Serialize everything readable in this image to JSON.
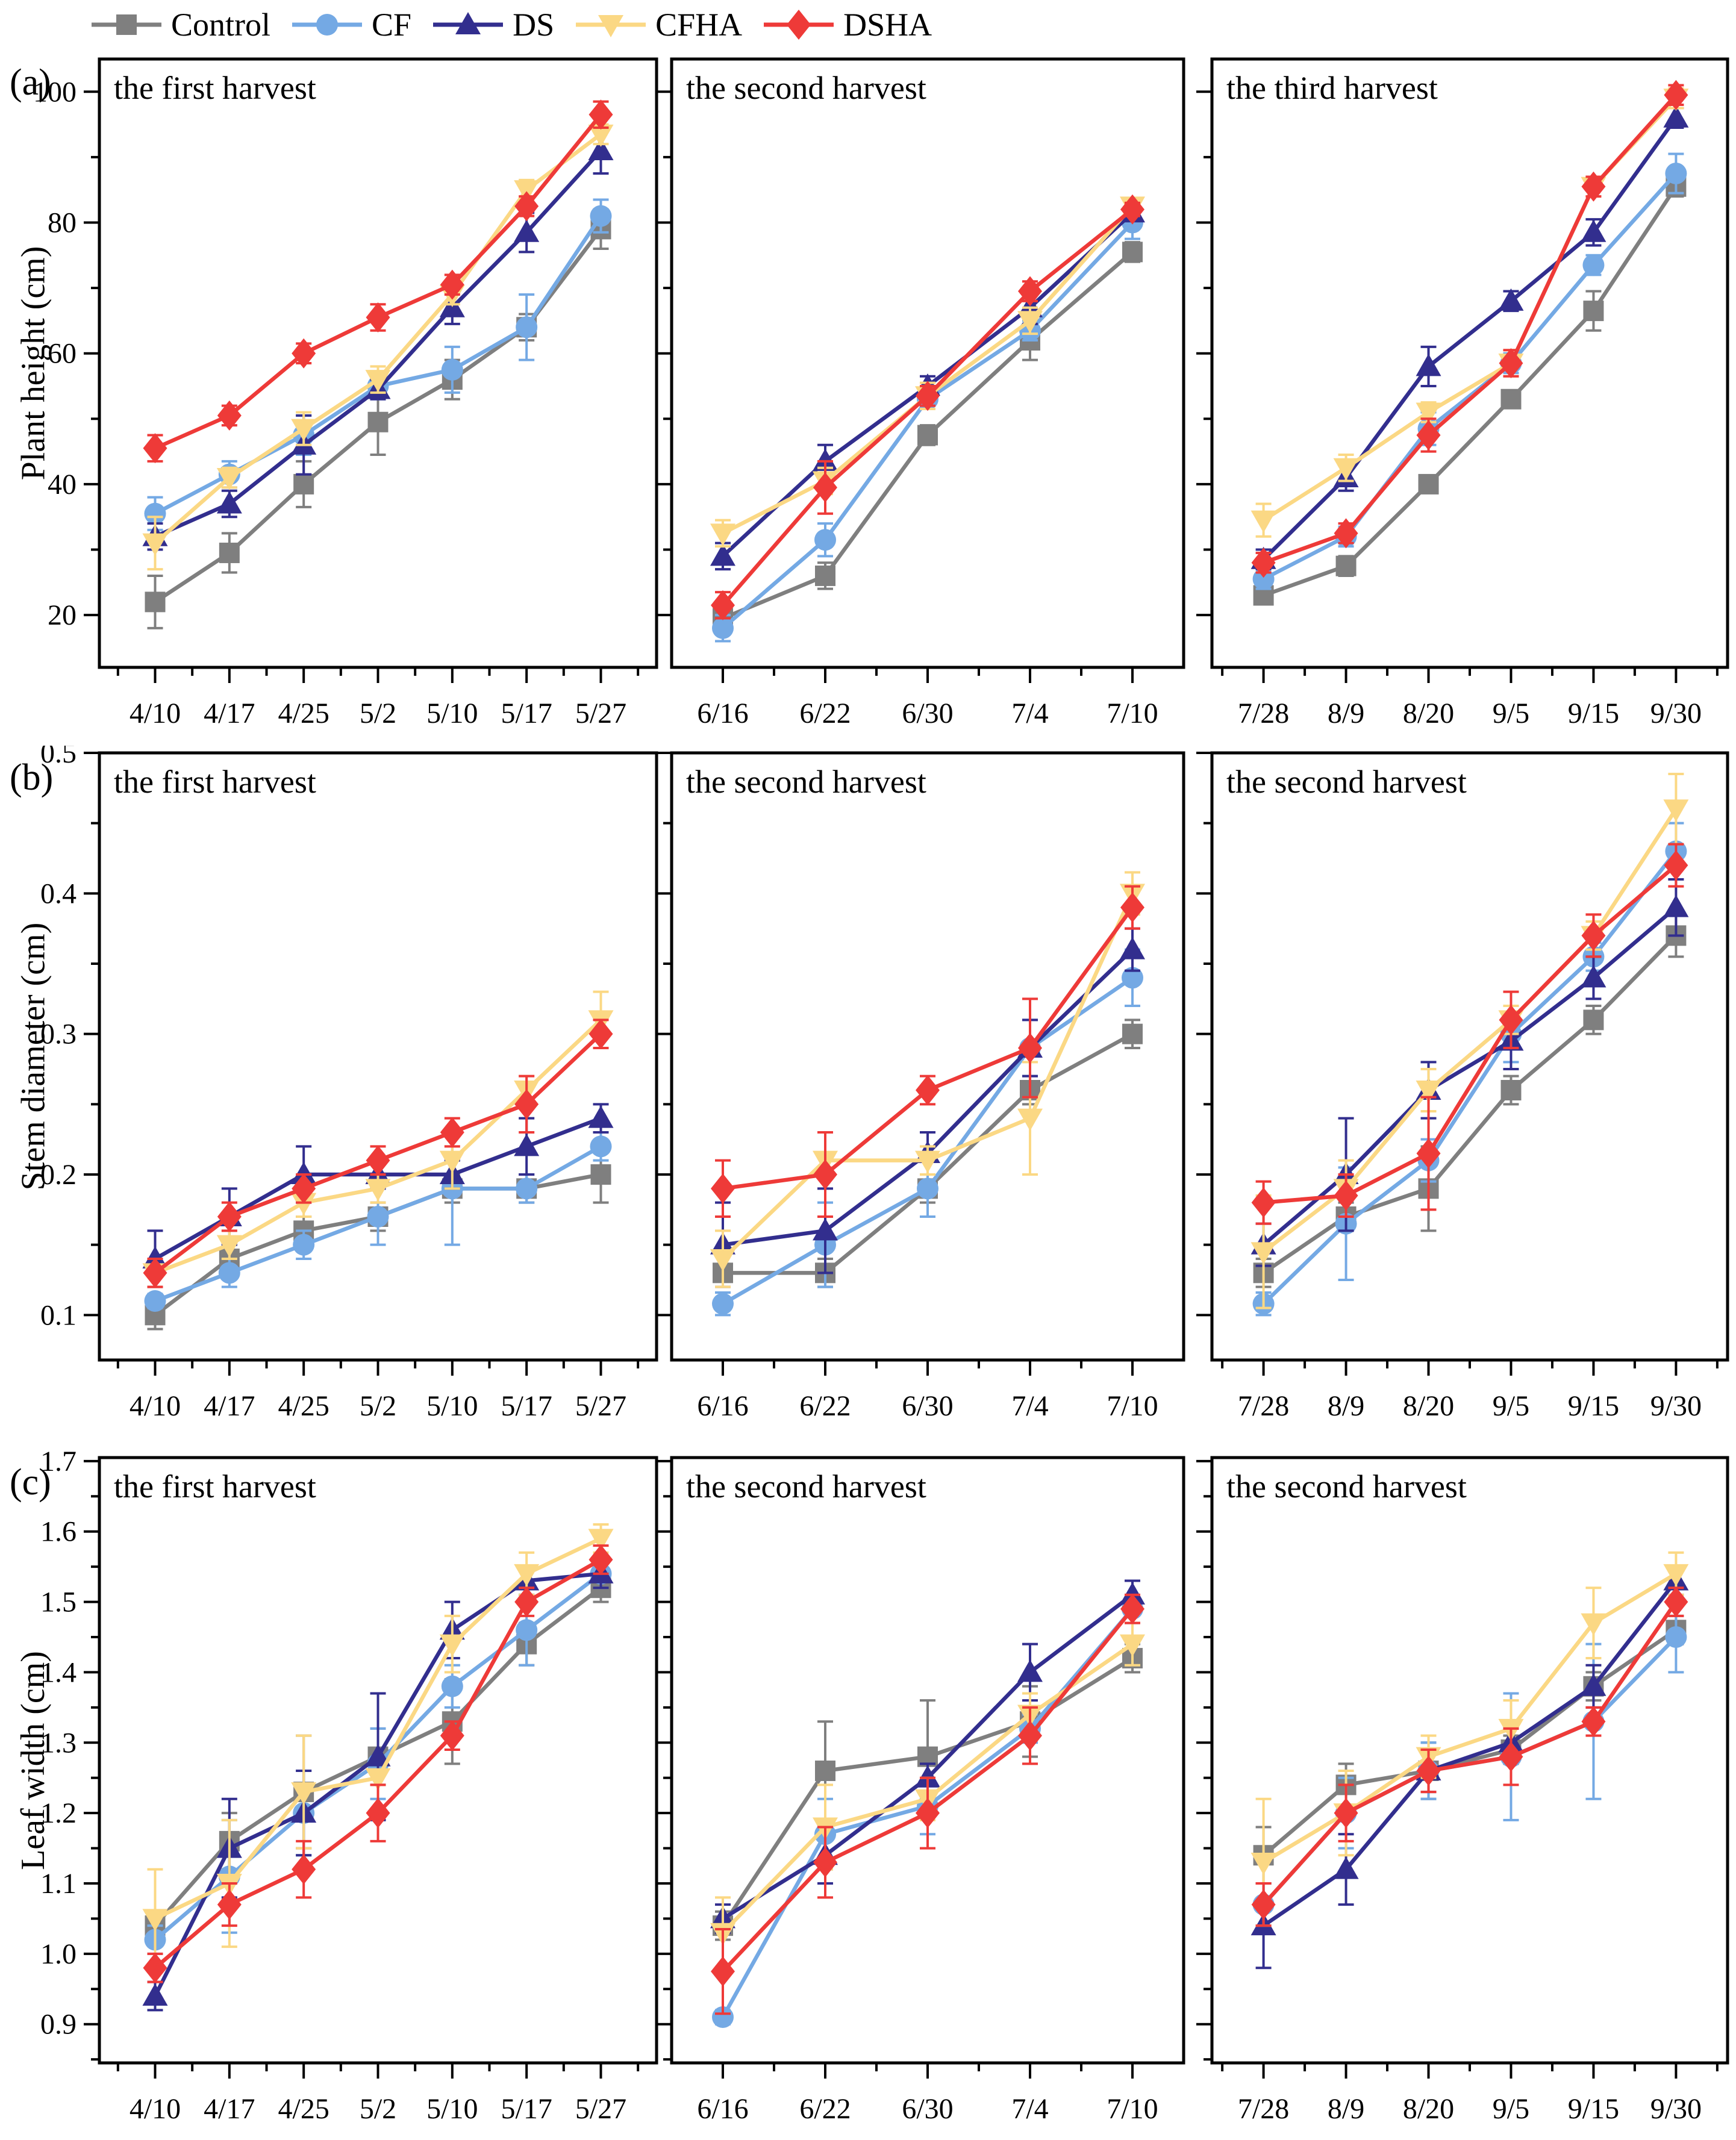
{
  "figure": {
    "background": "#ffffff",
    "legend_position": "top",
    "frame_color": "#000000"
  },
  "legend": {
    "items": [
      {
        "label": "Control",
        "color": "#7F7F7F",
        "marker": "square"
      },
      {
        "label": "CF",
        "color": "#74A9E4",
        "marker": "circle"
      },
      {
        "label": "DS",
        "color": "#322E8E",
        "marker": "triangle-up"
      },
      {
        "label": "CFHA",
        "color": "#FBD884",
        "marker": "triangle-down"
      },
      {
        "label": "DSHA",
        "color": "#EE3A38",
        "marker": "diamond"
      }
    ]
  },
  "chart_data": [
    {
      "type": "line",
      "row": 0,
      "col": 0,
      "panel_letter": "(a)",
      "ylabel": "Plant height (cm)",
      "title": "the first harvest",
      "categories": [
        "4/10",
        "4/17",
        "4/25",
        "5/2",
        "5/10",
        "5/17",
        "5/27"
      ],
      "ylim": [
        12,
        105
      ],
      "yticks": [
        20,
        40,
        60,
        80,
        100
      ],
      "ytick_decimals": 0,
      "show_ytick_labels": true,
      "grid": false,
      "series": [
        {
          "name": "Control",
          "values": [
            22,
            29.5,
            40,
            49.5,
            56,
            64,
            79
          ],
          "errors": [
            4,
            3,
            3.5,
            5,
            3,
            2,
            3
          ]
        },
        {
          "name": "CF",
          "values": [
            35.5,
            41.5,
            47.5,
            55,
            57.5,
            64,
            81
          ],
          "errors": [
            2.5,
            2,
            3,
            2,
            3.5,
            5,
            2.5
          ]
        },
        {
          "name": "DS",
          "values": [
            32,
            37,
            46,
            54.5,
            67,
            78.5,
            91
          ],
          "errors": [
            2,
            2,
            4.5,
            1.5,
            2.5,
            3,
            3.5
          ]
        },
        {
          "name": "CFHA",
          "values": [
            31,
            41,
            48.5,
            56,
            69,
            85,
            93.5
          ],
          "errors": [
            4,
            1.5,
            2.5,
            2,
            1.5,
            1.5,
            1.5
          ]
        },
        {
          "name": "DSHA",
          "values": [
            45.5,
            50.5,
            60,
            65.5,
            70.5,
            82.5,
            96.5
          ],
          "errors": [
            2,
            1.5,
            1.5,
            2,
            1.5,
            1.5,
            2
          ]
        }
      ]
    },
    {
      "type": "line",
      "row": 0,
      "col": 1,
      "title": "the second harvest",
      "categories": [
        "6/16",
        "6/22",
        "6/30",
        "7/4",
        "7/10"
      ],
      "ylim": [
        12,
        105
      ],
      "yticks": [
        20,
        40,
        60,
        80,
        100
      ],
      "ytick_decimals": 0,
      "show_ytick_labels": false,
      "grid": false,
      "series": [
        {
          "name": "Control",
          "values": [
            19.5,
            26,
            47.5,
            62,
            75.5
          ],
          "errors": [
            1.5,
            2,
            1.5,
            3,
            1.5
          ]
        },
        {
          "name": "CF",
          "values": [
            18,
            31.5,
            53,
            63.5,
            80
          ],
          "errors": [
            2,
            2.5,
            1.5,
            1.5,
            2.5
          ]
        },
        {
          "name": "DS",
          "values": [
            29,
            43.5,
            55,
            67,
            81.5
          ],
          "errors": [
            2,
            2.5,
            1.5,
            2.5,
            1
          ]
        },
        {
          "name": "CFHA",
          "values": [
            32.5,
            40.5,
            53.5,
            65,
            82.5
          ],
          "errors": [
            2,
            2,
            2,
            2,
            1
          ]
        },
        {
          "name": "DSHA",
          "values": [
            21.5,
            39.5,
            53.5,
            69.5,
            82
          ],
          "errors": [
            2,
            4,
            1.5,
            1.5,
            1
          ]
        }
      ]
    },
    {
      "type": "line",
      "row": 0,
      "col": 2,
      "title": "the third harvest",
      "categories": [
        "7/28",
        "8/9",
        "8/20",
        "9/5",
        "9/15",
        "9/30"
      ],
      "ylim": [
        12,
        105
      ],
      "yticks": [
        20,
        40,
        60,
        80,
        100
      ],
      "ytick_decimals": 0,
      "show_ytick_labels": false,
      "grid": false,
      "series": [
        {
          "name": "Control",
          "values": [
            23,
            27.5,
            40,
            53,
            66.5,
            85.5
          ],
          "errors": [
            1,
            1.5,
            1,
            1,
            3,
            1.5
          ]
        },
        {
          "name": "CF",
          "values": [
            25.5,
            32,
            48.5,
            58.5,
            73.5,
            87.5
          ],
          "errors": [
            1.5,
            1.5,
            2.5,
            1.5,
            1.5,
            3
          ]
        },
        {
          "name": "DS",
          "values": [
            28.5,
            41,
            58,
            68,
            78.5,
            96
          ],
          "errors": [
            1.5,
            2,
            3,
            1.5,
            2,
            1.5
          ]
        },
        {
          "name": "CFHA",
          "values": [
            34.5,
            42.5,
            51,
            58.5,
            85.5,
            99
          ],
          "errors": [
            2.5,
            2,
            1.5,
            2,
            1.5,
            1.5
          ]
        },
        {
          "name": "DSHA",
          "values": [
            28,
            32.5,
            47.5,
            58.5,
            85.5,
            99.5
          ],
          "errors": [
            1.5,
            1.5,
            2.5,
            2,
            1.5,
            1.5
          ]
        }
      ]
    },
    {
      "type": "line",
      "row": 1,
      "col": 0,
      "panel_letter": "(b)",
      "ylabel": "Stem diameter (cm)",
      "title": "the first harvest",
      "categories": [
        "4/10",
        "4/17",
        "4/25",
        "5/2",
        "5/10",
        "5/17",
        "5/27"
      ],
      "ylim": [
        0.068,
        0.5
      ],
      "yticks": [
        0.1,
        0.2,
        0.3,
        0.4,
        0.5
      ],
      "ytick_decimals": 1,
      "show_ytick_labels": true,
      "grid": false,
      "series": [
        {
          "name": "Control",
          "values": [
            0.1,
            0.14,
            0.16,
            0.17,
            0.19,
            0.19,
            0.2
          ],
          "errors": [
            0.01,
            0.01,
            0.01,
            0.01,
            0.01,
            0.01,
            0.02
          ]
        },
        {
          "name": "CF",
          "values": [
            0.11,
            0.13,
            0.15,
            0.17,
            0.19,
            0.19,
            0.22
          ],
          "errors": [
            0.005,
            0.01,
            0.01,
            0.02,
            0.04,
            0.01,
            0.01
          ]
        },
        {
          "name": "DS",
          "values": [
            0.14,
            0.17,
            0.2,
            0.2,
            0.2,
            0.22,
            0.24
          ],
          "errors": [
            0.02,
            0.02,
            0.02,
            0.01,
            0.01,
            0.02,
            0.01
          ]
        },
        {
          "name": "CFHA",
          "values": [
            0.13,
            0.15,
            0.18,
            0.19,
            0.21,
            0.26,
            0.31
          ],
          "errors": [
            0.01,
            0.01,
            0.01,
            0.01,
            0.02,
            0.01,
            0.02
          ]
        },
        {
          "name": "DSHA",
          "values": [
            0.13,
            0.17,
            0.19,
            0.21,
            0.23,
            0.25,
            0.3
          ],
          "errors": [
            0.01,
            0.01,
            0.01,
            0.01,
            0.01,
            0.02,
            0.01
          ]
        }
      ]
    },
    {
      "type": "line",
      "row": 1,
      "col": 1,
      "title": "the second harvest",
      "categories": [
        "6/16",
        "6/22",
        "6/30",
        "7/4",
        "7/10"
      ],
      "ylim": [
        0.068,
        0.5
      ],
      "yticks": [
        0.1,
        0.2,
        0.3,
        0.4,
        0.5
      ],
      "ytick_decimals": 1,
      "show_ytick_labels": false,
      "grid": false,
      "series": [
        {
          "name": "Control",
          "values": [
            0.13,
            0.13,
            0.19,
            0.26,
            0.3
          ],
          "errors": [
            0.005,
            0.01,
            0.01,
            0.01,
            0.01
          ]
        },
        {
          "name": "CF",
          "values": [
            0.108,
            0.15,
            0.19,
            0.29,
            0.34
          ],
          "errors": [
            0.008,
            0.03,
            0.02,
            0.02,
            0.02
          ]
        },
        {
          "name": "DS",
          "values": [
            0.15,
            0.16,
            0.215,
            0.29,
            0.36
          ],
          "errors": [
            0.03,
            0.03,
            0.015,
            0.02,
            0.015
          ]
        },
        {
          "name": "CFHA",
          "values": [
            0.14,
            0.21,
            0.21,
            0.24,
            0.4
          ],
          "errors": [
            0.02,
            0.005,
            0.01,
            0.04,
            0.015
          ]
        },
        {
          "name": "DSHA",
          "values": [
            0.19,
            0.2,
            0.26,
            0.29,
            0.39
          ],
          "errors": [
            0.02,
            0.03,
            0.01,
            0.035,
            0.015
          ]
        }
      ]
    },
    {
      "type": "line",
      "row": 1,
      "col": 2,
      "title": "the second harvest",
      "categories": [
        "7/28",
        "8/9",
        "8/20",
        "9/5",
        "9/15",
        "9/30"
      ],
      "ylim": [
        0.068,
        0.5
      ],
      "yticks": [
        0.1,
        0.2,
        0.3,
        0.4,
        0.5
      ],
      "ytick_decimals": 1,
      "show_ytick_labels": false,
      "grid": false,
      "series": [
        {
          "name": "Control",
          "values": [
            0.13,
            0.17,
            0.19,
            0.26,
            0.31,
            0.37
          ],
          "errors": [
            0.01,
            0.01,
            0.03,
            0.01,
            0.01,
            0.015
          ]
        },
        {
          "name": "CF",
          "values": [
            0.108,
            0.165,
            0.21,
            0.3,
            0.355,
            0.43
          ],
          "errors": [
            0.008,
            0.04,
            0.015,
            0.02,
            0.01,
            0.02
          ]
        },
        {
          "name": "DS",
          "values": [
            0.15,
            0.2,
            0.26,
            0.295,
            0.34,
            0.39
          ],
          "errors": [
            0.015,
            0.04,
            0.02,
            0.02,
            0.015,
            0.02
          ]
        },
        {
          "name": "CFHA",
          "values": [
            0.145,
            0.19,
            0.26,
            0.31,
            0.37,
            0.46
          ],
          "errors": [
            0.04,
            0.02,
            0.015,
            0.01,
            0.01,
            0.025
          ]
        },
        {
          "name": "DSHA",
          "values": [
            0.18,
            0.185,
            0.215,
            0.31,
            0.37,
            0.42
          ],
          "errors": [
            0.015,
            0.015,
            0.04,
            0.02,
            0.015,
            0.015
          ]
        }
      ]
    },
    {
      "type": "line",
      "row": 2,
      "col": 0,
      "panel_letter": "(c)",
      "ylabel": "Leaf width (cm)",
      "title": "the first harvest",
      "categories": [
        "4/10",
        "4/17",
        "4/25",
        "5/2",
        "5/10",
        "5/17",
        "5/27"
      ],
      "ylim": [
        0.845,
        1.705
      ],
      "yticks": [
        0.9,
        1.0,
        1.1,
        1.2,
        1.3,
        1.4,
        1.5,
        1.6,
        1.7
      ],
      "ytick_decimals": 1,
      "show_ytick_labels": true,
      "grid": false,
      "series": [
        {
          "name": "Control",
          "values": [
            1.04,
            1.16,
            1.23,
            1.28,
            1.33,
            1.44,
            1.52
          ],
          "errors": [
            0.02,
            0.04,
            0.08,
            0.04,
            0.06,
            0.03,
            0.02
          ]
        },
        {
          "name": "CF",
          "values": [
            1.02,
            1.11,
            1.2,
            1.27,
            1.38,
            1.46,
            1.54
          ],
          "errors": [
            0.02,
            0.08,
            0.06,
            0.05,
            0.03,
            0.05,
            0.02
          ]
        },
        {
          "name": "DS",
          "values": [
            0.94,
            1.15,
            1.2,
            1.28,
            1.46,
            1.53,
            1.54
          ],
          "errors": [
            0.02,
            0.07,
            0.06,
            0.09,
            0.04,
            0.02,
            0.02
          ]
        },
        {
          "name": "CFHA",
          "values": [
            1.05,
            1.1,
            1.23,
            1.25,
            1.44,
            1.54,
            1.59
          ],
          "errors": [
            0.07,
            0.09,
            0.08,
            0.01,
            0.04,
            0.03,
            0.02
          ]
        },
        {
          "name": "DSHA",
          "values": [
            0.98,
            1.07,
            1.12,
            1.2,
            1.31,
            1.5,
            1.56
          ],
          "errors": [
            0.02,
            0.03,
            0.04,
            0.04,
            0.02,
            0.02,
            0.02
          ]
        }
      ]
    },
    {
      "type": "line",
      "row": 2,
      "col": 1,
      "title": "the second harvest",
      "categories": [
        "6/16",
        "6/22",
        "6/30",
        "7/4",
        "7/10"
      ],
      "ylim": [
        0.845,
        1.705
      ],
      "yticks": [
        0.9,
        1.0,
        1.1,
        1.2,
        1.3,
        1.4,
        1.5,
        1.6,
        1.7
      ],
      "ytick_decimals": 1,
      "show_ytick_labels": false,
      "grid": false,
      "series": [
        {
          "name": "Control",
          "values": [
            1.04,
            1.26,
            1.28,
            1.33,
            1.42
          ],
          "errors": [
            0.02,
            0.07,
            0.08,
            0.05,
            0.02
          ]
        },
        {
          "name": "CF",
          "values": [
            0.91,
            1.17,
            1.21,
            1.32,
            1.49
          ],
          "errors": [
            0.01,
            0.05,
            0.04,
            0.02,
            0.02
          ]
        },
        {
          "name": "DS",
          "values": [
            1.05,
            1.14,
            1.25,
            1.4,
            1.51
          ],
          "errors": [
            0.02,
            0.04,
            0.02,
            0.04,
            0.02
          ]
        },
        {
          "name": "CFHA",
          "values": [
            1.03,
            1.18,
            1.22,
            1.34,
            1.44
          ],
          "errors": [
            0.05,
            0.06,
            0.03,
            0.03,
            0.03
          ]
        },
        {
          "name": "DSHA",
          "values": [
            0.975,
            1.13,
            1.2,
            1.31,
            1.49
          ],
          "errors": [
            0.06,
            0.05,
            0.05,
            0.04,
            0.02
          ]
        }
      ]
    },
    {
      "type": "line",
      "row": 2,
      "col": 2,
      "title": "the second harvest",
      "categories": [
        "7/28",
        "8/9",
        "8/20",
        "9/5",
        "9/15",
        "9/30"
      ],
      "ylim": [
        0.845,
        1.705
      ],
      "yticks": [
        0.9,
        1.0,
        1.1,
        1.2,
        1.3,
        1.4,
        1.5,
        1.6,
        1.7
      ],
      "ytick_decimals": 1,
      "show_ytick_labels": false,
      "grid": false,
      "series": [
        {
          "name": "Control",
          "values": [
            1.14,
            1.24,
            1.26,
            1.29,
            1.38,
            1.46
          ],
          "errors": [
            0.04,
            0.03,
            0.04,
            0.02,
            0.02,
            0.02
          ]
        },
        {
          "name": "CF",
          "values": [
            1.07,
            1.2,
            1.26,
            1.28,
            1.33,
            1.45
          ],
          "errors": [
            0.03,
            0.05,
            0.04,
            0.09,
            0.11,
            0.05
          ]
        },
        {
          "name": "DS",
          "values": [
            1.04,
            1.12,
            1.26,
            1.3,
            1.38,
            1.53
          ],
          "errors": [
            0.06,
            0.05,
            0.03,
            0.02,
            0.03,
            0.02
          ]
        },
        {
          "name": "CFHA",
          "values": [
            1.13,
            1.2,
            1.28,
            1.32,
            1.47,
            1.54
          ],
          "errors": [
            0.09,
            0.06,
            0.03,
            0.04,
            0.05,
            0.03
          ]
        },
        {
          "name": "DSHA",
          "values": [
            1.07,
            1.2,
            1.26,
            1.28,
            1.33,
            1.5
          ],
          "errors": [
            0.03,
            0.04,
            0.03,
            0.04,
            0.02,
            0.02
          ]
        }
      ]
    }
  ]
}
